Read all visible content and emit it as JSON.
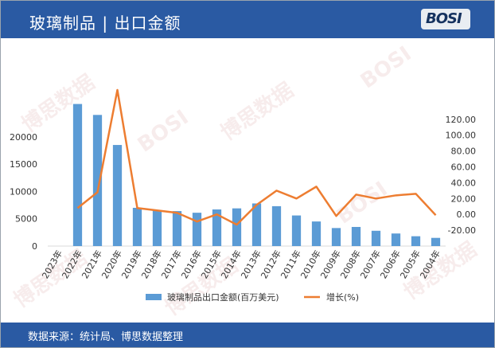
{
  "header": {
    "title": "玻璃制品 | 出口金额"
  },
  "footer": {
    "source": "数据来源：统计局、博思数据整理"
  },
  "logo_icon": "bosi-logo",
  "colors": {
    "bar": "#5b9bd5",
    "line": "#ed7d31",
    "header": "#2a5aa3"
  },
  "chart_data": {
    "type": "bar",
    "categories": [
      "2023年",
      "2022年",
      "2021年",
      "2020年",
      "2019年",
      "2018年",
      "2017年",
      "2016年",
      "2015年",
      "2014年",
      "2013年",
      "2012年",
      "2011年",
      "2010年",
      "2009年",
      "2008年",
      "2007年",
      "2006年",
      "2005年",
      "2004年"
    ],
    "series": [
      {
        "name": "玻璃制品出口金额(百万美元)",
        "type": "bar",
        "axis": "left",
        "values": [
          null,
          26000,
          24000,
          18500,
          7000,
          6500,
          6400,
          6100,
          6700,
          6900,
          7800,
          7300,
          5600,
          4500,
          3300,
          3500,
          2800,
          2300,
          1800,
          1500
        ]
      },
      {
        "name": "增长(%)",
        "type": "line",
        "axis": "right",
        "values": [
          null,
          8,
          28,
          157,
          8,
          5,
          2,
          -9,
          0,
          -13,
          12,
          30,
          20,
          35,
          -2,
          25,
          20,
          24,
          26,
          -1
        ]
      }
    ],
    "y_left": {
      "ticks": [
        "0",
        "5000",
        "10000",
        "15000",
        "20000"
      ],
      "range": [
        0,
        29000
      ]
    },
    "y_right": {
      "ticks": [
        "-20.00",
        "0.00",
        "20.00",
        "40.00",
        "60.00",
        "80.00",
        "100.00",
        "120.00"
      ],
      "range": [
        -40,
        160
      ]
    },
    "legend": {
      "position": "bottom"
    },
    "grid": false
  }
}
